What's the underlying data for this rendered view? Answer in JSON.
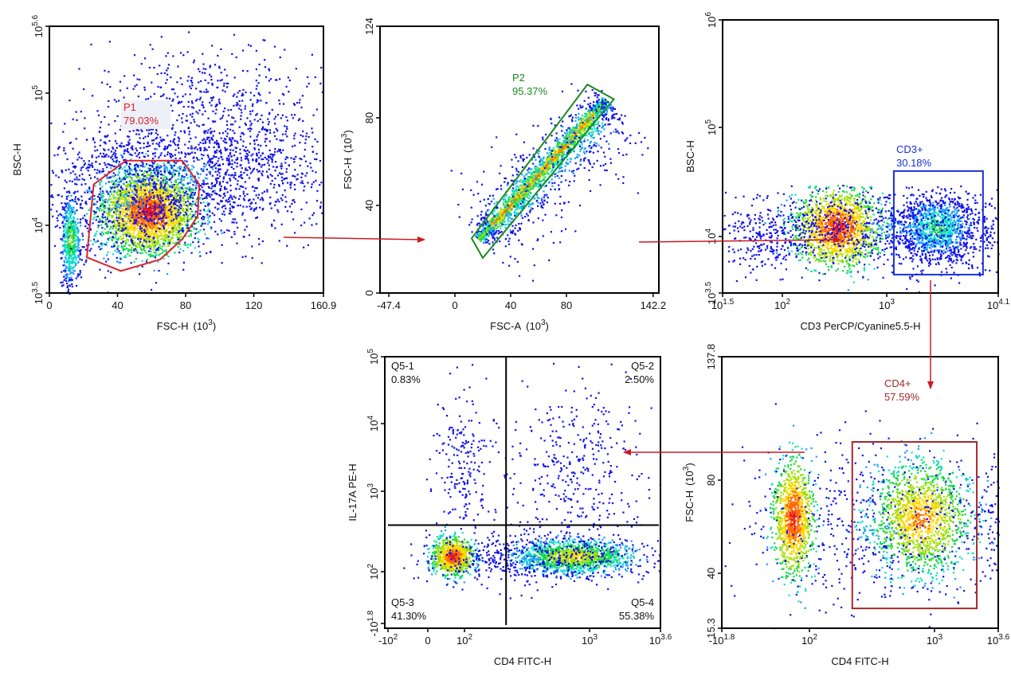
{
  "colors": {
    "p1": "#e0202a",
    "p2": "#1a8a1a",
    "cd3": "#1a2fd6",
    "cd4": "#a3282c",
    "arrow": "#cc1a22",
    "quadrant": "#000000"
  },
  "chart_data": [
    {
      "id": "p1",
      "type": "scatter-density",
      "xlabel": "FSC-H",
      "xunit": "(10",
      "xunit_exp": "3",
      "xunit_end": ")",
      "ylabel": "BSC-H",
      "xscale": "linear",
      "yscale": "log",
      "xlim": [
        0,
        160.9
      ],
      "ylim_log10": [
        3.5,
        5.6
      ],
      "xticks": [
        {
          "v": 0,
          "t": "0"
        },
        {
          "v": 40,
          "t": "40"
        },
        {
          "v": 80,
          "t": "80"
        },
        {
          "v": 120,
          "t": "120"
        },
        {
          "v": 160.9,
          "t": "160.9"
        }
      ],
      "yticks": [
        {
          "v": 3.5,
          "b": "10",
          "e": "3.5"
        },
        {
          "v": 4,
          "b": "10",
          "e": "4"
        },
        {
          "v": 5,
          "b": "10",
          "e": "5"
        },
        {
          "v": 5.6,
          "b": "10",
          "e": "5.6"
        }
      ],
      "gate": {
        "name": "P1",
        "percent": "79.03%",
        "shape": "polygon",
        "vertices": [
          [
            26,
            20400
          ],
          [
            45,
            30900
          ],
          [
            78,
            30900
          ],
          [
            88,
            20400
          ],
          [
            87,
            11700
          ],
          [
            78,
            7900
          ],
          [
            65,
            5600
          ],
          [
            42,
            4600
          ],
          [
            22,
            5800
          ]
        ]
      }
    },
    {
      "id": "p2",
      "type": "scatter-density",
      "xlabel": "FSC-A",
      "xunit": "(10",
      "xunit_exp": "3",
      "xunit_end": ")",
      "ylabel": "FSC-H",
      "yunit": "(10",
      "yunit_exp": "3",
      "yunit_end": ")",
      "xscale": "linear",
      "yscale": "linear",
      "xlim": [
        -47.4,
        142.2
      ],
      "ylim": [
        0,
        124
      ],
      "xticks": [
        {
          "v": -47.4,
          "t": "-47.4"
        },
        {
          "v": 0,
          "t": "0"
        },
        {
          "v": 40,
          "t": "40"
        },
        {
          "v": 80,
          "t": "80"
        },
        {
          "v": 142.2,
          "t": "142.2"
        }
      ],
      "yticks": [
        {
          "v": 0,
          "t": "0"
        },
        {
          "v": 40,
          "t": "40"
        },
        {
          "v": 80,
          "t": "80"
        },
        {
          "v": 124,
          "t": "124"
        }
      ],
      "gate": {
        "name": "P2",
        "percent": "95.37%",
        "shape": "polygon",
        "vertices": [
          [
            12,
            25
          ],
          [
            95,
            96
          ],
          [
            114,
            89
          ],
          [
            20,
            16
          ]
        ]
      }
    },
    {
      "id": "cd3",
      "type": "scatter-density",
      "xlabel": "CD3 PerCP/Cyanine5.5-H",
      "ylabel": "BSC-H",
      "xscale": "log",
      "yscale": "log",
      "xlim_log10": [
        1.5,
        4.1
      ],
      "ylim_log10": [
        3.5,
        6
      ],
      "xticks": [
        {
          "v": 1.5,
          "b": "10",
          "e": "1.5"
        },
        {
          "v": 2,
          "b": "10",
          "e": "2"
        },
        {
          "v": 3,
          "b": "10",
          "e": "3"
        },
        {
          "v": 4.1,
          "b": "10",
          "e": "4.1"
        }
      ],
      "yticks": [
        {
          "v": 3.5,
          "b": "10",
          "e": "3.5"
        },
        {
          "v": 4,
          "b": "10",
          "e": "4"
        },
        {
          "v": 5,
          "b": "10",
          "e": "5"
        },
        {
          "v": 6,
          "b": "10",
          "e": "6"
        }
      ],
      "gate": {
        "name": "CD3+",
        "percent": "30.18%",
        "shape": "rectangle",
        "x": [
          1175,
          8900
        ],
        "y": [
          4600,
          39800
        ]
      }
    },
    {
      "id": "q5",
      "type": "scatter-density",
      "xlabel": "CD4 FITC-H",
      "ylabel": "IL-17A PE-H",
      "xscale": "biexponential",
      "yscale": "biexponential",
      "xticks": [
        {
          "v": -100,
          "b": "-10",
          "e": "2"
        },
        {
          "v": 0,
          "t": "0"
        },
        {
          "v": 100,
          "b": "10",
          "e": "2"
        },
        {
          "v": 1000,
          "b": "10",
          "e": "3"
        },
        {
          "v": 3981,
          "b": "10",
          "e": "3.6"
        }
      ],
      "yticks": [
        {
          "v": -63,
          "b": "-10",
          "e": "1.8"
        },
        {
          "v": 100,
          "b": "10",
          "e": "2"
        },
        {
          "v": 1000,
          "b": "10",
          "e": "3"
        },
        {
          "v": 10000,
          "b": "10",
          "e": "4"
        },
        {
          "v": 100000,
          "b": "10",
          "e": "5"
        }
      ],
      "quadrant": {
        "x": 215,
        "y": 380
      },
      "quadrants": [
        {
          "name": "Q5-1",
          "percent": "0.83%"
        },
        {
          "name": "Q5-2",
          "percent": "2.50%"
        },
        {
          "name": "Q5-3",
          "percent": "41.30%"
        },
        {
          "name": "Q5-4",
          "percent": "55.38%"
        }
      ]
    },
    {
      "id": "cd4",
      "type": "scatter-density",
      "xlabel": "CD4 FITC-H",
      "ylabel": "FSC-H",
      "yunit": "(10",
      "yunit_exp": "3",
      "yunit_end": ")",
      "xscale": "biexponential",
      "yscale": "linear",
      "ylim": [
        15.3,
        137.8
      ],
      "xticks": [
        {
          "v": -63,
          "b": "-10",
          "e": "1.8"
        },
        {
          "v": 100,
          "b": "10",
          "e": "2"
        },
        {
          "v": 1000,
          "b": "10",
          "e": "3"
        },
        {
          "v": 3981,
          "b": "10",
          "e": "3.6"
        }
      ],
      "yticks": [
        {
          "v": 15.3,
          "t": "15.3"
        },
        {
          "v": 40,
          "t": "40"
        },
        {
          "v": 80,
          "t": "80"
        },
        {
          "v": 137.8,
          "t": "137.8"
        }
      ],
      "gate": {
        "name": "CD4+",
        "percent": "57.59%",
        "shape": "rectangle",
        "x": [
          220,
          2500
        ],
        "y": [
          24.2,
          97.9
        ]
      }
    }
  ]
}
